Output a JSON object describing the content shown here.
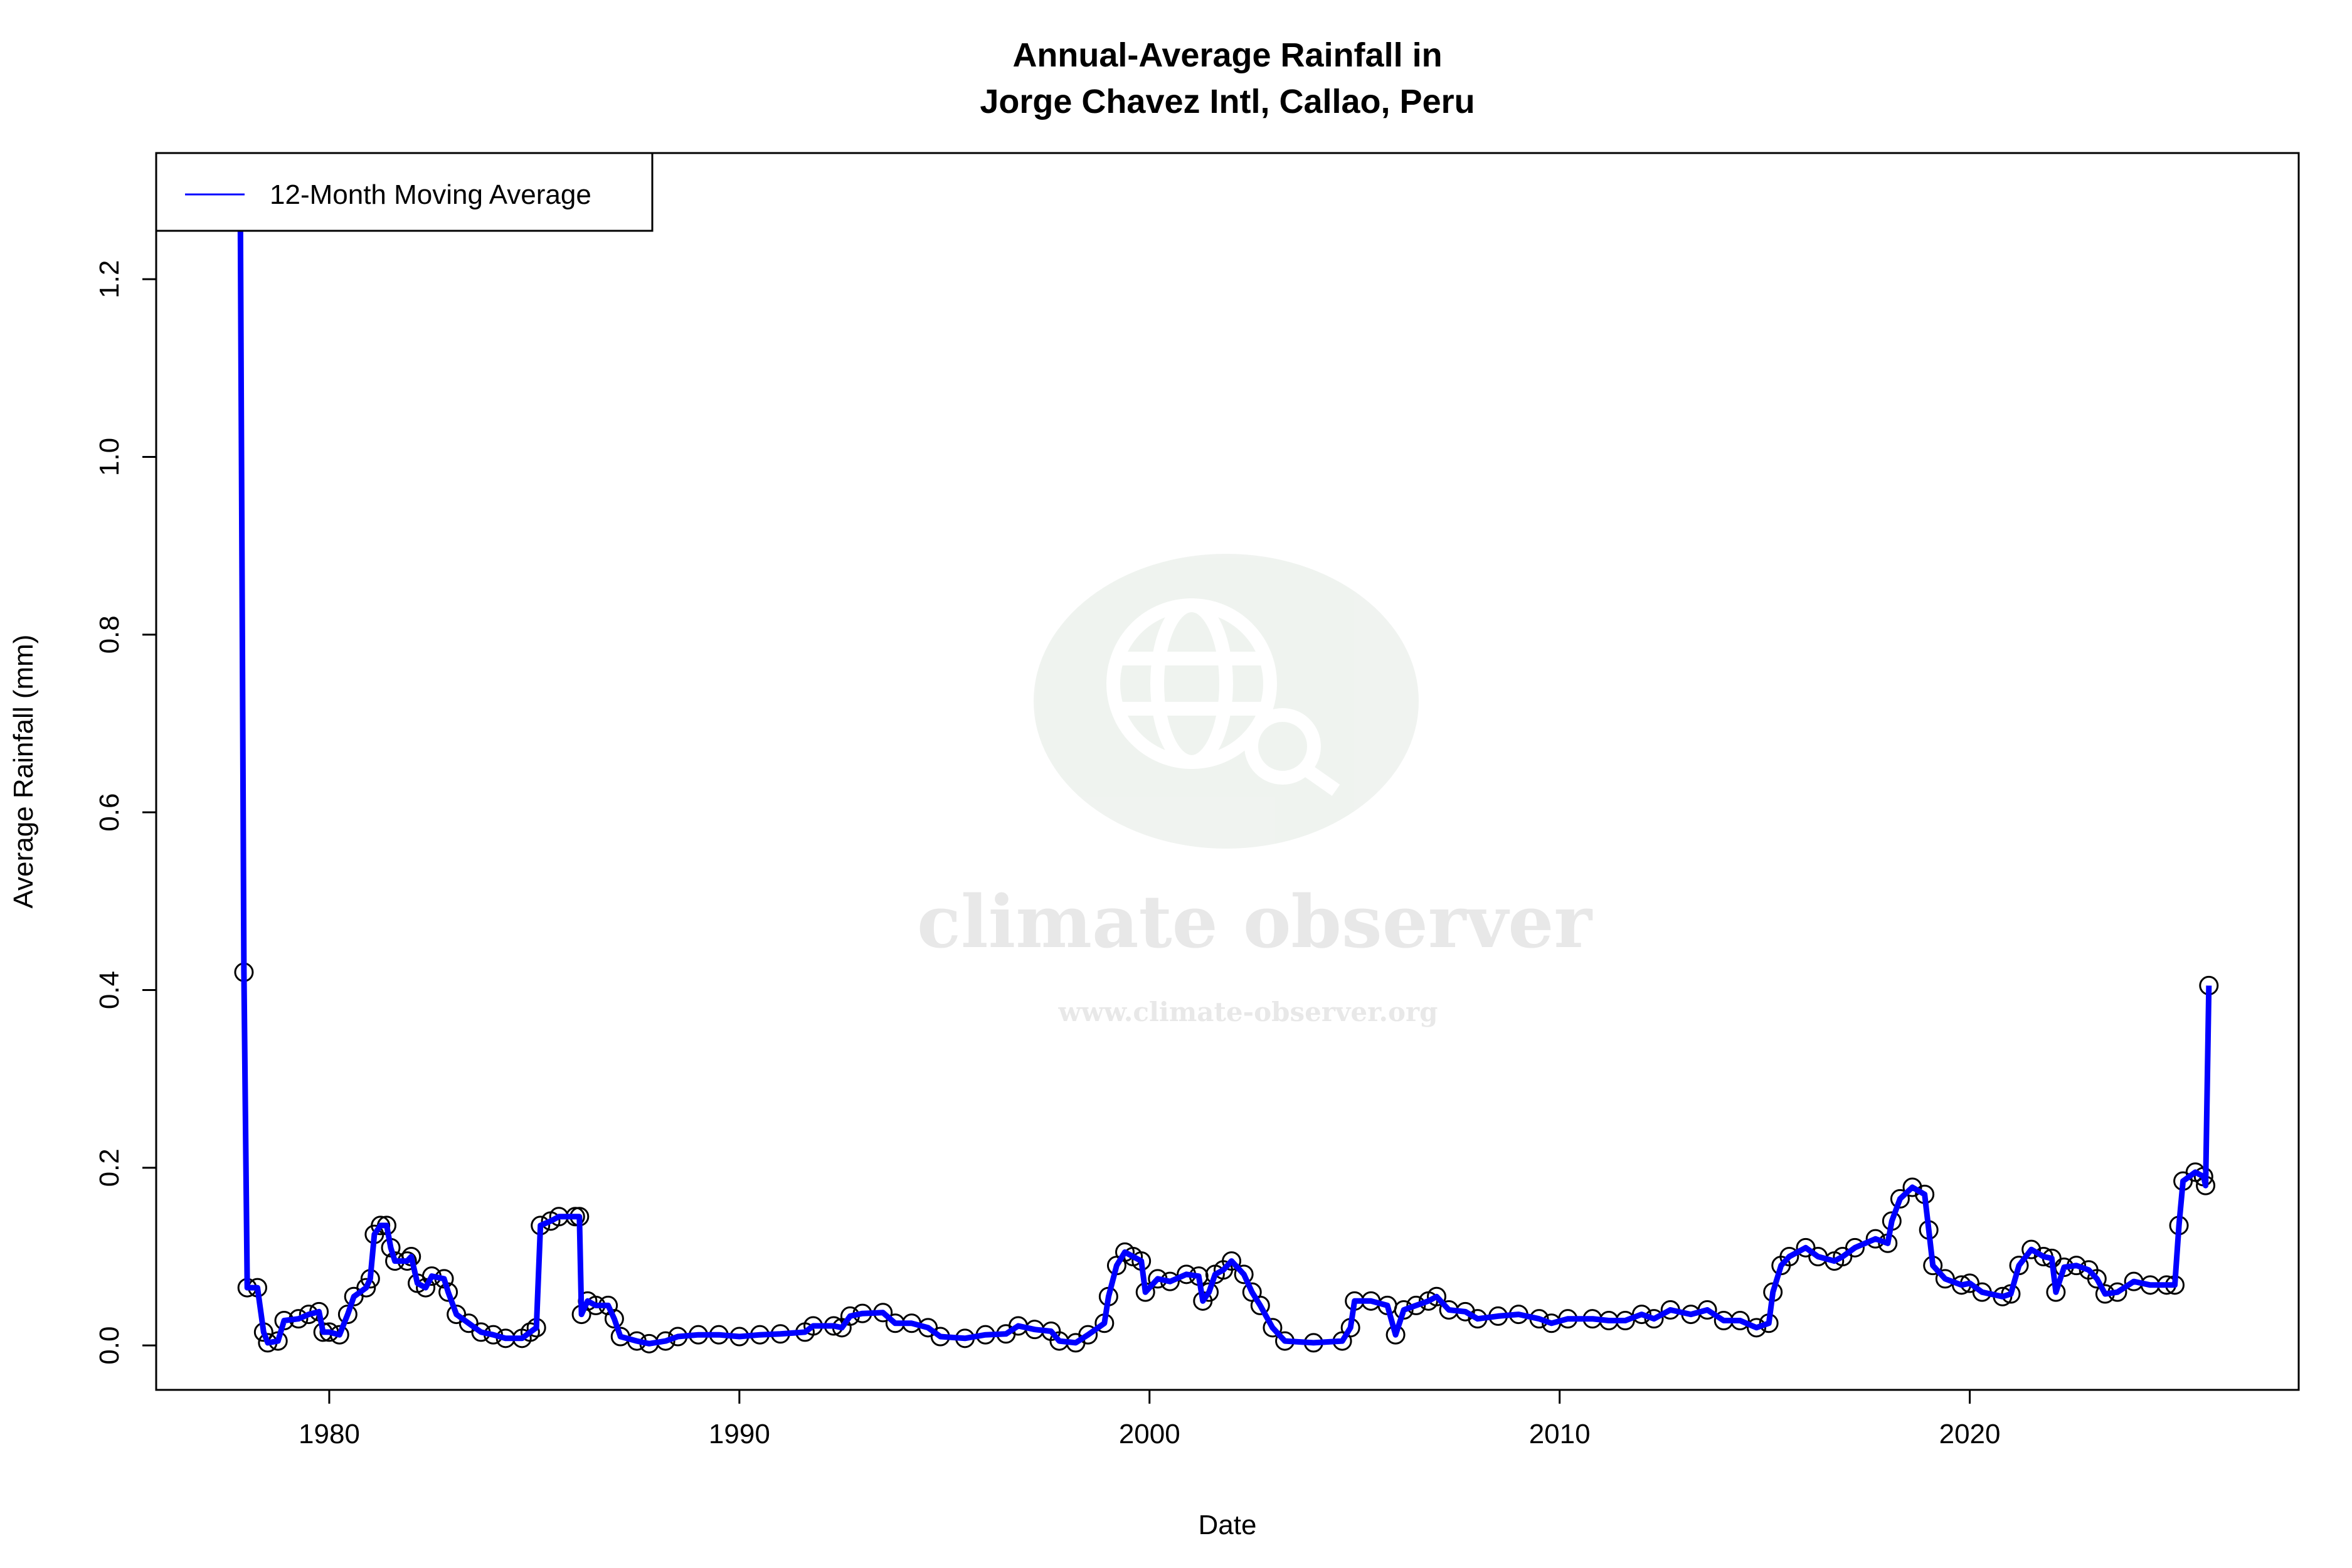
{
  "chart_data": {
    "type": "line",
    "title": "Annual-Average Rainfall in",
    "subtitle": "Jorge Chavez Intl, Callao, Peru",
    "xlabel": "Date",
    "ylabel": "Average Rainfall (mm)",
    "xlim": [
      1975.78,
      2028.02
    ],
    "ylim": [
      -0.05,
      1.342
    ],
    "xticks": [
      1980,
      1990,
      2000,
      2010,
      2020
    ],
    "yticks": [
      "0.0",
      "0.2",
      "0.4",
      "0.6",
      "0.8",
      "1.0",
      "1.2"
    ],
    "grid": false,
    "legend_position": "top-left",
    "series": [
      {
        "name": "12-Month Moving Average",
        "color": "#0000ff",
        "marker_color": "#000000",
        "points": [
          [
            1977.83,
            1.289
          ],
          [
            1977.92,
            0.42
          ],
          [
            1978.0,
            0.065
          ],
          [
            1978.25,
            0.065
          ],
          [
            1978.4,
            0.015
          ],
          [
            1978.5,
            0.003
          ],
          [
            1978.75,
            0.005
          ],
          [
            1978.9,
            0.028
          ],
          [
            1979.25,
            0.03
          ],
          [
            1979.5,
            0.035
          ],
          [
            1979.75,
            0.038
          ],
          [
            1979.85,
            0.015
          ],
          [
            1980.0,
            0.015
          ],
          [
            1980.25,
            0.012
          ],
          [
            1980.45,
            0.035
          ],
          [
            1980.6,
            0.055
          ],
          [
            1980.9,
            0.065
          ],
          [
            1981.0,
            0.075
          ],
          [
            1981.1,
            0.125
          ],
          [
            1981.25,
            0.135
          ],
          [
            1981.4,
            0.135
          ],
          [
            1981.5,
            0.11
          ],
          [
            1981.6,
            0.095
          ],
          [
            1981.9,
            0.095
          ],
          [
            1982.0,
            0.1
          ],
          [
            1982.15,
            0.07
          ],
          [
            1982.35,
            0.065
          ],
          [
            1982.5,
            0.078
          ],
          [
            1982.8,
            0.075
          ],
          [
            1982.9,
            0.06
          ],
          [
            1983.1,
            0.035
          ],
          [
            1983.4,
            0.025
          ],
          [
            1983.7,
            0.015
          ],
          [
            1984.0,
            0.012
          ],
          [
            1984.3,
            0.008
          ],
          [
            1984.7,
            0.008
          ],
          [
            1984.9,
            0.015
          ],
          [
            1985.05,
            0.02
          ],
          [
            1985.15,
            0.135
          ],
          [
            1985.4,
            0.14
          ],
          [
            1985.6,
            0.145
          ],
          [
            1986.0,
            0.145
          ],
          [
            1986.1,
            0.145
          ],
          [
            1986.15,
            0.035
          ],
          [
            1986.3,
            0.05
          ],
          [
            1986.5,
            0.045
          ],
          [
            1986.8,
            0.045
          ],
          [
            1986.95,
            0.03
          ],
          [
            1987.1,
            0.01
          ],
          [
            1987.5,
            0.005
          ],
          [
            1987.8,
            0.002
          ],
          [
            1988.2,
            0.005
          ],
          [
            1988.5,
            0.01
          ],
          [
            1989.0,
            0.012
          ],
          [
            1989.5,
            0.012
          ],
          [
            1990.0,
            0.01
          ],
          [
            1990.5,
            0.012
          ],
          [
            1991.0,
            0.013
          ],
          [
            1991.6,
            0.015
          ],
          [
            1991.8,
            0.022
          ],
          [
            1992.3,
            0.022
          ],
          [
            1992.5,
            0.02
          ],
          [
            1992.7,
            0.033
          ],
          [
            1993.0,
            0.036
          ],
          [
            1993.5,
            0.037
          ],
          [
            1993.8,
            0.025
          ],
          [
            1994.2,
            0.025
          ],
          [
            1994.6,
            0.02
          ],
          [
            1994.9,
            0.01
          ],
          [
            1995.5,
            0.008
          ],
          [
            1996.0,
            0.012
          ],
          [
            1996.5,
            0.013
          ],
          [
            1996.8,
            0.022
          ],
          [
            1997.2,
            0.018
          ],
          [
            1997.6,
            0.016
          ],
          [
            1997.8,
            0.005
          ],
          [
            1998.2,
            0.003
          ],
          [
            1998.5,
            0.012
          ],
          [
            1998.9,
            0.025
          ],
          [
            1999.0,
            0.055
          ],
          [
            1999.2,
            0.09
          ],
          [
            1999.4,
            0.105
          ],
          [
            1999.6,
            0.1
          ],
          [
            1999.8,
            0.095
          ],
          [
            1999.9,
            0.06
          ],
          [
            2000.2,
            0.075
          ],
          [
            2000.5,
            0.072
          ],
          [
            2000.9,
            0.08
          ],
          [
            2001.2,
            0.078
          ],
          [
            2001.3,
            0.05
          ],
          [
            2001.45,
            0.06
          ],
          [
            2001.6,
            0.08
          ],
          [
            2001.8,
            0.085
          ],
          [
            2002.0,
            0.095
          ],
          [
            2002.3,
            0.08
          ],
          [
            2002.5,
            0.06
          ],
          [
            2002.7,
            0.045
          ],
          [
            2003.0,
            0.02
          ],
          [
            2003.3,
            0.005
          ],
          [
            2004.0,
            0.003
          ],
          [
            2004.7,
            0.005
          ],
          [
            2004.9,
            0.02
          ],
          [
            2005.0,
            0.05
          ],
          [
            2005.4,
            0.05
          ],
          [
            2005.8,
            0.045
          ],
          [
            2006.0,
            0.012
          ],
          [
            2006.2,
            0.04
          ],
          [
            2006.5,
            0.045
          ],
          [
            2006.8,
            0.05
          ],
          [
            2007.0,
            0.055
          ],
          [
            2007.3,
            0.04
          ],
          [
            2007.7,
            0.038
          ],
          [
            2008.0,
            0.03
          ],
          [
            2008.5,
            0.033
          ],
          [
            2009.0,
            0.035
          ],
          [
            2009.5,
            0.03
          ],
          [
            2009.8,
            0.025
          ],
          [
            2010.2,
            0.03
          ],
          [
            2010.8,
            0.03
          ],
          [
            2011.2,
            0.028
          ],
          [
            2011.6,
            0.028
          ],
          [
            2012.0,
            0.035
          ],
          [
            2012.3,
            0.03
          ],
          [
            2012.7,
            0.04
          ],
          [
            2013.2,
            0.035
          ],
          [
            2013.6,
            0.04
          ],
          [
            2014.0,
            0.028
          ],
          [
            2014.4,
            0.028
          ],
          [
            2014.8,
            0.02
          ],
          [
            2015.1,
            0.025
          ],
          [
            2015.2,
            0.06
          ],
          [
            2015.4,
            0.09
          ],
          [
            2015.6,
            0.1
          ],
          [
            2016.0,
            0.11
          ],
          [
            2016.3,
            0.1
          ],
          [
            2016.7,
            0.095
          ],
          [
            2016.9,
            0.1
          ],
          [
            2017.2,
            0.11
          ],
          [
            2017.7,
            0.12
          ],
          [
            2018.0,
            0.115
          ],
          [
            2018.1,
            0.14
          ],
          [
            2018.3,
            0.165
          ],
          [
            2018.6,
            0.178
          ],
          [
            2018.9,
            0.17
          ],
          [
            2019.0,
            0.13
          ],
          [
            2019.1,
            0.09
          ],
          [
            2019.4,
            0.075
          ],
          [
            2019.8,
            0.068
          ],
          [
            2020.0,
            0.07
          ],
          [
            2020.3,
            0.06
          ],
          [
            2020.8,
            0.055
          ],
          [
            2021.0,
            0.058
          ],
          [
            2021.2,
            0.09
          ],
          [
            2021.5,
            0.108
          ],
          [
            2021.8,
            0.1
          ],
          [
            2022.0,
            0.098
          ],
          [
            2022.1,
            0.06
          ],
          [
            2022.3,
            0.088
          ],
          [
            2022.6,
            0.09
          ],
          [
            2022.9,
            0.085
          ],
          [
            2023.1,
            0.075
          ],
          [
            2023.3,
            0.058
          ],
          [
            2023.6,
            0.06
          ],
          [
            2024.0,
            0.072
          ],
          [
            2024.4,
            0.068
          ],
          [
            2024.8,
            0.068
          ],
          [
            2025.0,
            0.068
          ],
          [
            2025.1,
            0.135
          ],
          [
            2025.2,
            0.185
          ],
          [
            2025.5,
            0.195
          ],
          [
            2025.7,
            0.19
          ],
          [
            2025.75,
            0.18
          ],
          [
            2025.83,
            0.405
          ]
        ]
      }
    ]
  },
  "watermark": {
    "name": "climate observer",
    "url": "www.climate-observer.org",
    "icon": "globe-search-icon"
  }
}
